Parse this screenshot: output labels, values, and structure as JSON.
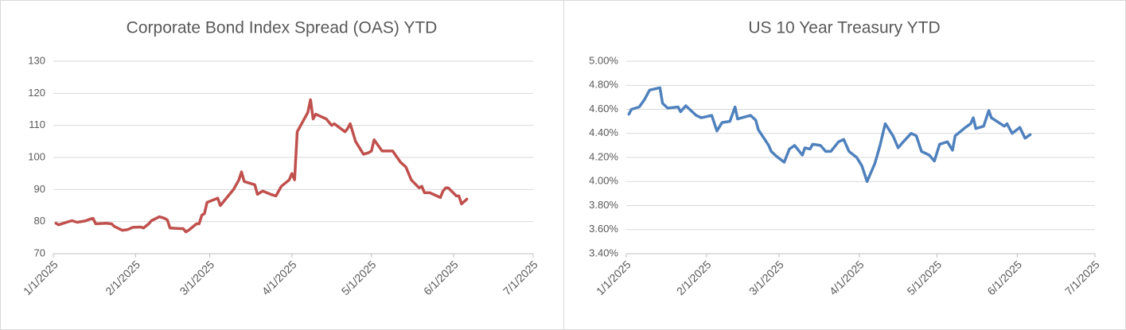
{
  "chart_data": [
    {
      "type": "line",
      "title": "Corporate Bond Index Spread (OAS) YTD",
      "color": "#c0504d",
      "x": [
        "1/2/2025",
        "1/3/2025",
        "1/6/2025",
        "1/8/2025",
        "1/10/2025",
        "1/13/2025",
        "1/15/2025",
        "1/16/2025",
        "1/17/2025",
        "1/21/2025",
        "1/23/2025",
        "1/24/2025",
        "1/27/2025",
        "1/29/2025",
        "1/31/2025",
        "2/3/2025",
        "2/4/2025",
        "2/6/2025",
        "2/7/2025",
        "2/10/2025",
        "2/12/2025",
        "2/13/2025",
        "2/14/2025",
        "2/18/2025",
        "2/19/2025",
        "2/20/2025",
        "2/21/2025",
        "2/24/2025",
        "2/25/2025",
        "2/26/2025",
        "2/27/2025",
        "2/28/2025",
        "3/4/2025",
        "3/5/2025",
        "3/7/2025",
        "3/10/2025",
        "3/12/2025",
        "3/13/2025",
        "3/14/2025",
        "3/18/2025",
        "3/19/2025",
        "3/21/2025",
        "3/24/2025",
        "3/26/2025",
        "3/28/2025",
        "3/31/2025",
        "4/1/2025",
        "4/2/2025",
        "4/3/2025",
        "4/7/2025",
        "4/8/2025",
        "4/9/2025",
        "4/10/2025",
        "4/14/2025",
        "4/16/2025",
        "4/17/2025",
        "4/21/2025",
        "4/22/2025",
        "4/23/2025",
        "4/25/2025",
        "4/28/2025",
        "4/30/2025",
        "5/1/2025",
        "5/2/2025",
        "5/5/2025",
        "5/7/2025",
        "5/9/2025",
        "5/12/2025",
        "5/14/2025",
        "5/16/2025",
        "5/19/2025",
        "5/20/2025",
        "5/21/2025",
        "5/23/2025",
        "5/27/2025",
        "5/28/2025",
        "5/29/2025",
        "5/30/2025",
        "6/2/2025",
        "6/3/2025",
        "6/4/2025",
        "6/6/2025"
      ],
      "values": [
        79.5,
        79,
        79.8,
        80.3,
        79.8,
        80.2,
        80.8,
        81,
        79.3,
        79.5,
        79.3,
        78.5,
        77.3,
        77.5,
        78.2,
        78.3,
        78,
        79.3,
        80.3,
        81.5,
        81,
        80.5,
        78,
        77.8,
        77.8,
        76.8,
        77.3,
        79.3,
        79.3,
        82,
        82.5,
        86,
        87.3,
        85,
        87,
        90,
        93,
        95.5,
        92.5,
        91.5,
        88.5,
        89.5,
        88.5,
        88,
        91,
        93,
        95,
        93,
        108,
        114,
        118,
        112,
        113.5,
        112,
        110,
        110.5,
        108,
        109,
        110.5,
        105,
        101,
        101.5,
        102,
        105.5,
        102,
        102,
        102,
        98.5,
        97,
        93,
        90.5,
        91,
        89,
        89,
        87.5,
        89.5,
        90.5,
        90.5,
        88,
        88,
        85.5,
        87
      ],
      "xlim": [
        "1/1/2025",
        "7/1/2025"
      ],
      "xticks": [
        "1/1/2025",
        "2/1/2025",
        "3/1/2025",
        "4/1/2025",
        "5/1/2025",
        "6/1/2025",
        "7/1/2025"
      ],
      "ylim": [
        70,
        130
      ],
      "yticks": [
        70,
        80,
        90,
        100,
        110,
        120,
        130
      ],
      "grid": true
    },
    {
      "type": "line",
      "title": "US 10 Year Treasury YTD",
      "color": "#4f81bd",
      "x": [
        "1/2/2025",
        "1/3/2025",
        "1/6/2025",
        "1/8/2025",
        "1/10/2025",
        "1/14/2025",
        "1/15/2025",
        "1/17/2025",
        "1/21/2025",
        "1/22/2025",
        "1/24/2025",
        "1/28/2025",
        "1/30/2025",
        "2/3/2025",
        "2/5/2025",
        "2/7/2025",
        "2/10/2025",
        "2/12/2025",
        "2/13/2025",
        "2/18/2025",
        "2/20/2025",
        "2/21/2025",
        "2/25/2025",
        "2/26/2025",
        "2/28/2025",
        "3/3/2025",
        "3/5/2025",
        "3/7/2025",
        "3/10/2025",
        "3/11/2025",
        "3/13/2025",
        "3/14/2025",
        "3/17/2025",
        "3/19/2025",
        "3/21/2025",
        "3/24/2025",
        "3/26/2025",
        "3/28/2025",
        "3/31/2025",
        "4/2/2025",
        "4/4/2025",
        "4/7/2025",
        "4/9/2025",
        "4/11/2025",
        "4/14/2025",
        "4/16/2025",
        "4/18/2025",
        "4/21/2025",
        "4/23/2025",
        "4/25/2025",
        "4/28/2025",
        "4/30/2025",
        "5/2/2025",
        "5/5/2025",
        "5/7/2025",
        "5/8/2025",
        "5/12/2025",
        "5/14/2025",
        "5/15/2025",
        "5/16/2025",
        "5/19/2025",
        "5/21/2025",
        "5/22/2025",
        "5/27/2025",
        "5/28/2025",
        "5/30/2025",
        "6/2/2025",
        "6/4/2025",
        "6/6/2025"
      ],
      "values": [
        4.56,
        4.6,
        4.62,
        4.68,
        4.76,
        4.78,
        4.65,
        4.61,
        4.62,
        4.58,
        4.63,
        4.55,
        4.53,
        4.55,
        4.42,
        4.49,
        4.5,
        4.62,
        4.52,
        4.55,
        4.51,
        4.43,
        4.3,
        4.25,
        4.21,
        4.16,
        4.27,
        4.3,
        4.22,
        4.28,
        4.27,
        4.31,
        4.3,
        4.25,
        4.25,
        4.33,
        4.35,
        4.25,
        4.2,
        4.13,
        4.0,
        4.15,
        4.3,
        4.48,
        4.38,
        4.28,
        4.33,
        4.4,
        4.38,
        4.25,
        4.22,
        4.17,
        4.31,
        4.33,
        4.26,
        4.38,
        4.45,
        4.48,
        4.53,
        4.44,
        4.46,
        4.59,
        4.53,
        4.46,
        4.48,
        4.4,
        4.45,
        4.36,
        4.39
      ],
      "xlim": [
        "1/1/2025",
        "7/1/2025"
      ],
      "xticks": [
        "1/1/2025",
        "2/1/2025",
        "3/1/2025",
        "4/1/2025",
        "5/1/2025",
        "6/1/2025",
        "7/1/2025"
      ],
      "ylim": [
        3.4,
        5.0
      ],
      "yticks": [
        {
          "value": 3.4,
          "label": "3.40%"
        },
        {
          "value": 3.6,
          "label": "3.60%"
        },
        {
          "value": 3.8,
          "label": "3.80%"
        },
        {
          "value": 4.0,
          "label": "4.00%"
        },
        {
          "value": 4.2,
          "label": "4.20%"
        },
        {
          "value": 4.4,
          "label": "4.40%"
        },
        {
          "value": 4.6,
          "label": "4.60%"
        },
        {
          "value": 4.8,
          "label": "4.80%"
        },
        {
          "value": 5.0,
          "label": "5.00%"
        }
      ],
      "grid": true
    }
  ]
}
